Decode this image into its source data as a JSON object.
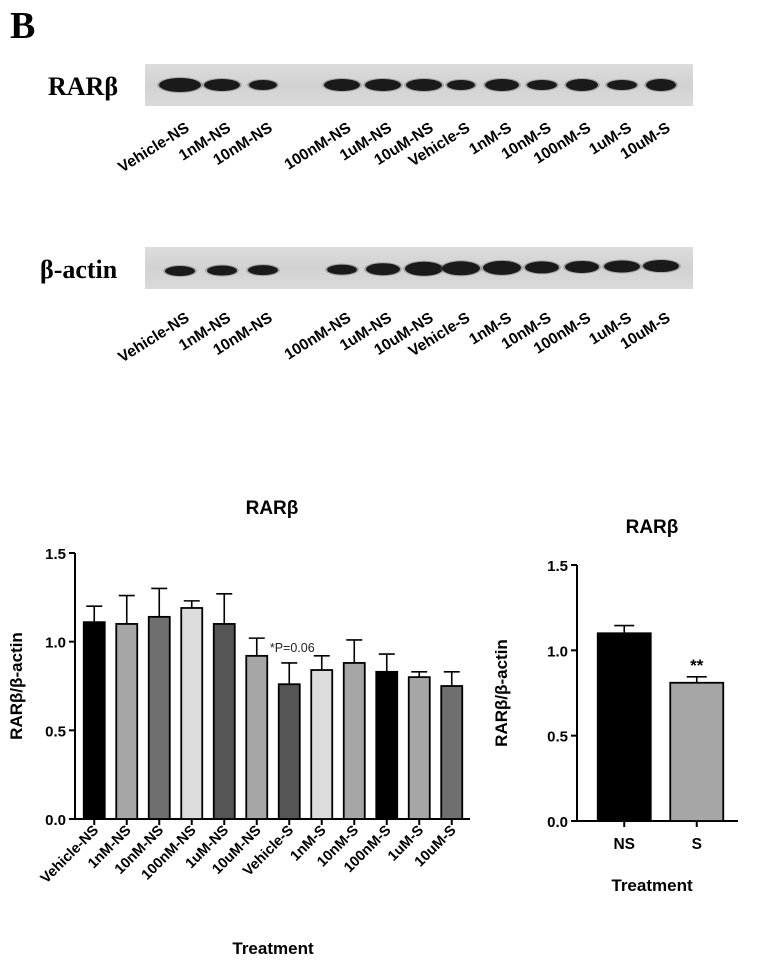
{
  "panel_letter": "B",
  "blots": {
    "top": {
      "label": "RARβ",
      "lanes": [
        "Vehicle-NS",
        "1nM-NS",
        "10nM-NS",
        "100nM-NS",
        "1uM-NS",
        "10uM-NS",
        "Vehicle-S",
        "1nM-S",
        "10nM-S",
        "100nM-S",
        "1uM-S",
        "10uM-S"
      ]
    },
    "bottom": {
      "label": "β-actin",
      "lanes": [
        "Vehicle-NS",
        "1nM-NS",
        "10nM-NS",
        "100nM-NS",
        "1uM-NS",
        "10uM-NS",
        "Vehicle-S",
        "1nM-S",
        "10nM-S",
        "100nM-S",
        "1uM-S",
        "10uM-S"
      ]
    }
  },
  "chart_data": [
    {
      "type": "bar",
      "title": "RARβ",
      "xlabel": "Treatment",
      "ylabel": "RARβ/β-actin",
      "ylim": [
        0,
        1.5
      ],
      "yticks": [
        "0.0",
        "0.5",
        "1.0",
        "1.5"
      ],
      "categories": [
        "Vehicle-NS",
        "1nM-NS",
        "10nM-NS",
        "100nM-NS",
        "1uM-NS",
        "10uM-NS",
        "Vehicle-S",
        "1nM-S",
        "10nM-S",
        "100nM-S",
        "1uM-S",
        "10uM-S"
      ],
      "values": [
        1.11,
        1.1,
        1.14,
        1.19,
        1.1,
        0.92,
        0.76,
        0.84,
        0.88,
        0.83,
        0.8,
        0.75
      ],
      "errors": [
        0.09,
        0.16,
        0.16,
        0.04,
        0.17,
        0.1,
        0.12,
        0.08,
        0.13,
        0.1,
        0.03,
        0.08
      ],
      "bar_colors": [
        "#000000",
        "#a6a6a6",
        "#6f6f6f",
        "#dcdcdc",
        "#555555",
        "#a6a6a6",
        "#555555",
        "#dcdcdc",
        "#a6a6a6",
        "#000000",
        "#a6a6a6",
        "#6f6f6f"
      ],
      "annotation": "*P=0.06"
    },
    {
      "type": "bar",
      "title": "RARβ",
      "xlabel": "Treatment",
      "ylabel": "RARβ/β-actin",
      "ylim": [
        0,
        1.5
      ],
      "yticks": [
        "0.0",
        "0.5",
        "1.0",
        "1.5"
      ],
      "categories": [
        "NS",
        "S"
      ],
      "values": [
        1.1,
        0.81
      ],
      "errors": [
        0.045,
        0.035
      ],
      "bar_colors": [
        "#000000",
        "#a6a6a6"
      ],
      "annotation": "**"
    }
  ]
}
